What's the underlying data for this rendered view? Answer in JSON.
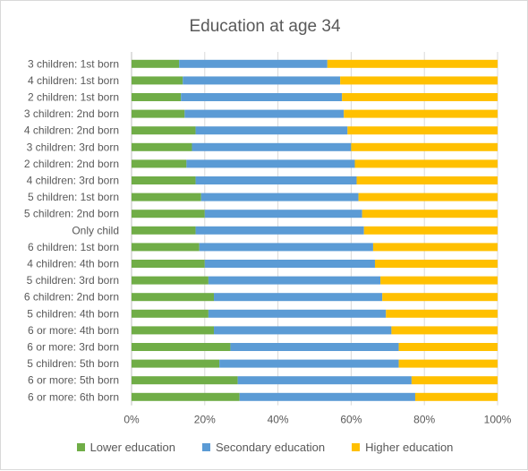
{
  "chart_data": {
    "type": "bar",
    "orientation": "horizontal",
    "stacked": "percent",
    "title": "Education at age 34",
    "categories": [
      "3 children: 1st born",
      "4 children: 1st born",
      "2 children: 1st born",
      "3 children: 2nd born",
      "4 children: 2nd born",
      "3 children: 3rd born",
      "2 children: 2nd born",
      "4 children: 3rd born",
      "5 children: 1st born",
      "5 children: 2nd born",
      "Only child",
      "6 children: 1st born",
      "4 children: 4th born",
      "5 children: 3rd born",
      "6 children: 2nd born",
      "5 children: 4th born",
      "6 or more: 4th born",
      "6 or more: 3rd born",
      "5 children: 5th born",
      "6 or more: 5th born",
      "6 or more: 6th born"
    ],
    "series": [
      {
        "name": "Lower education",
        "color": "#70ad47",
        "values": [
          13,
          14,
          13.5,
          14.5,
          17.5,
          16.5,
          15,
          17.5,
          19,
          20,
          17.5,
          18.5,
          20,
          21,
          22.5,
          21,
          22.5,
          27,
          24,
          29,
          29.5
        ]
      },
      {
        "name": "Secondary education",
        "color": "#5b9bd5",
        "values": [
          40.5,
          43,
          44,
          43.5,
          41.5,
          43.5,
          46,
          44,
          43,
          43,
          46,
          47.5,
          46.5,
          47,
          46,
          48.5,
          48.5,
          46,
          49,
          47.5,
          48
        ]
      },
      {
        "name": "Higher education",
        "color": "#ffc000",
        "values": [
          46.5,
          43,
          42.5,
          42,
          41,
          40,
          39,
          38.5,
          38,
          37,
          36.5,
          34,
          33.5,
          32,
          31.5,
          30.5,
          29,
          27,
          27,
          23.5,
          22.5
        ]
      }
    ],
    "xlim": [
      0,
      100
    ],
    "x_ticks": [
      "0%",
      "20%",
      "40%",
      "60%",
      "80%",
      "100%"
    ],
    "grid": true,
    "legend_position": "bottom"
  }
}
